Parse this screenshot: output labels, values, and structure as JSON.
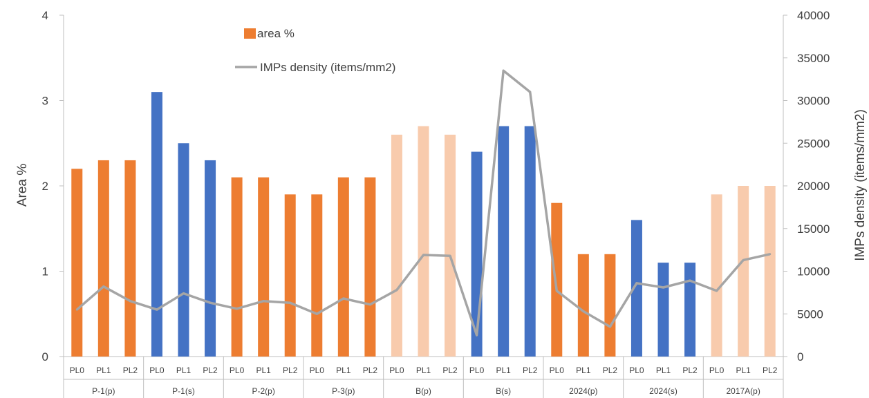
{
  "chart_data": {
    "type": "bar",
    "title": "",
    "ylabel": "Area %",
    "y2label": "IMPs density (items/mm2)",
    "ylim": [
      0,
      4
    ],
    "y2lim": [
      0,
      40000
    ],
    "yticks": [
      "0",
      "1",
      "2",
      "3",
      "4"
    ],
    "y2ticks": [
      "0",
      "5000",
      "10000",
      "15000",
      "20000",
      "25000",
      "30000",
      "35000",
      "40000"
    ],
    "groups": [
      "P-1(p)",
      "P-1(s)",
      "P-2(p)",
      "P-3(p)",
      "B(p)",
      "B(s)",
      "2024(p)",
      "2024(s)",
      "2017A(p)"
    ],
    "categories": [
      "PL0",
      "PL1",
      "PL2",
      "PL0",
      "PL1",
      "PL2",
      "PL0",
      "PL1",
      "PL2",
      "PL0",
      "PL1",
      "PL2",
      "PL0",
      "PL1",
      "PL2",
      "PL0",
      "PL1",
      "PL2",
      "PL0",
      "PL1",
      "PL2",
      "PL0",
      "PL1",
      "PL2",
      "PL0",
      "PL1",
      "PL2"
    ],
    "series": [
      {
        "name": "area %",
        "kind": "bar",
        "axis": "left",
        "values": [
          2.2,
          2.3,
          2.3,
          3.1,
          2.5,
          2.3,
          2.1,
          2.1,
          1.9,
          1.9,
          2.1,
          2.1,
          2.6,
          2.7,
          2.6,
          2.4,
          2.7,
          2.7,
          1.8,
          1.2,
          1.2,
          1.6,
          1.1,
          1.1,
          1.9,
          2.0,
          2.0
        ],
        "group_colors": [
          "#ED7D31",
          "#4472C4",
          "#ED7D31",
          "#ED7D31",
          "#F8CBAD",
          "#4472C4",
          "#ED7D31",
          "#4472C4",
          "#F8CBAD"
        ]
      },
      {
        "name": "IMPs density (items/mm2)",
        "kind": "line",
        "axis": "right",
        "color": "#A5A5A5",
        "values": [
          5500,
          8200,
          6500,
          5500,
          7400,
          6300,
          5600,
          6500,
          6300,
          5000,
          6800,
          6100,
          7800,
          11900,
          11800,
          2500,
          33500,
          31000,
          7700,
          5300,
          3500,
          8600,
          8100,
          8900,
          7700,
          11300,
          12000
        ]
      }
    ],
    "legend_position": "top-center",
    "grid": false
  }
}
